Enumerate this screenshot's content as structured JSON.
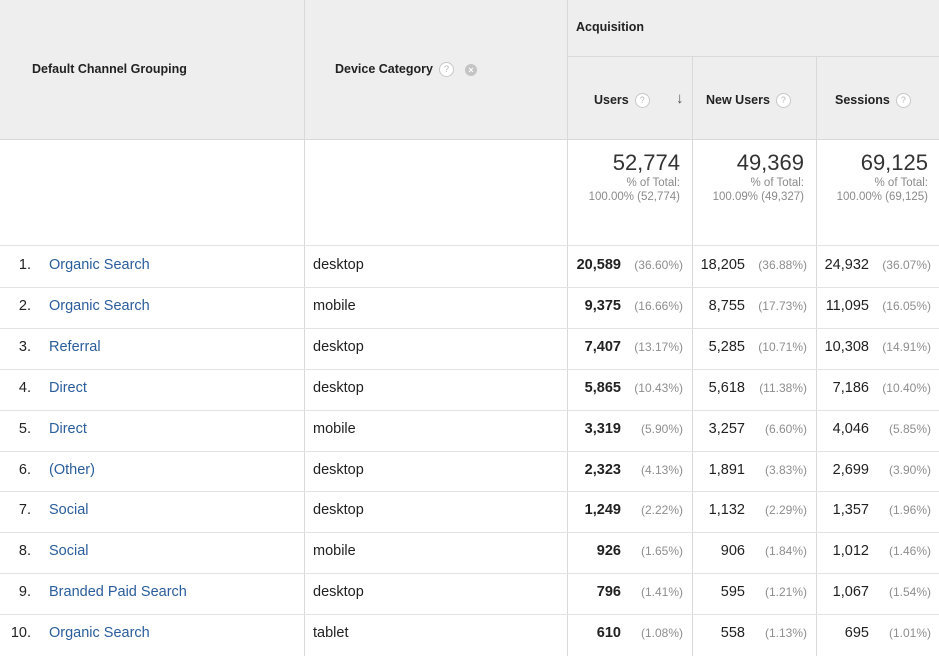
{
  "headers": {
    "dimension1": "Default Channel Grouping",
    "dimension2": "Device Category",
    "group": "Acquisition",
    "metrics": [
      "Users",
      "New Users",
      "Sessions"
    ],
    "help_glyph": "?",
    "remove_glyph": "×",
    "sort_glyph": "↓"
  },
  "totals": [
    {
      "value": "52,774",
      "label": "% of Total:",
      "detail": "100.00% (52,774)"
    },
    {
      "value": "49,369",
      "label": "% of Total:",
      "detail": "100.09% (49,327)"
    },
    {
      "value": "69,125",
      "label": "% of Total:",
      "detail": "100.00% (69,125)"
    }
  ],
  "rows": [
    {
      "n": "1.",
      "channel": "Organic Search",
      "device": "desktop",
      "users": "20,589",
      "users_pct": "(36.60%)",
      "new_users": "18,205",
      "new_users_pct": "(36.88%)",
      "sessions": "24,932",
      "sessions_pct": "(36.07%)"
    },
    {
      "n": "2.",
      "channel": "Organic Search",
      "device": "mobile",
      "users": "9,375",
      "users_pct": "(16.66%)",
      "new_users": "8,755",
      "new_users_pct": "(17.73%)",
      "sessions": "11,095",
      "sessions_pct": "(16.05%)"
    },
    {
      "n": "3.",
      "channel": "Referral",
      "device": "desktop",
      "users": "7,407",
      "users_pct": "(13.17%)",
      "new_users": "5,285",
      "new_users_pct": "(10.71%)",
      "sessions": "10,308",
      "sessions_pct": "(14.91%)"
    },
    {
      "n": "4.",
      "channel": "Direct",
      "device": "desktop",
      "users": "5,865",
      "users_pct": "(10.43%)",
      "new_users": "5,618",
      "new_users_pct": "(11.38%)",
      "sessions": "7,186",
      "sessions_pct": "(10.40%)"
    },
    {
      "n": "5.",
      "channel": "Direct",
      "device": "mobile",
      "users": "3,319",
      "users_pct": "(5.90%)",
      "new_users": "3,257",
      "new_users_pct": "(6.60%)",
      "sessions": "4,046",
      "sessions_pct": "(5.85%)"
    },
    {
      "n": "6.",
      "channel": "(Other)",
      "device": "desktop",
      "users": "2,323",
      "users_pct": "(4.13%)",
      "new_users": "1,891",
      "new_users_pct": "(3.83%)",
      "sessions": "2,699",
      "sessions_pct": "(3.90%)"
    },
    {
      "n": "7.",
      "channel": "Social",
      "device": "desktop",
      "users": "1,249",
      "users_pct": "(2.22%)",
      "new_users": "1,132",
      "new_users_pct": "(2.29%)",
      "sessions": "1,357",
      "sessions_pct": "(1.96%)"
    },
    {
      "n": "8.",
      "channel": "Social",
      "device": "mobile",
      "users": "926",
      "users_pct": "(1.65%)",
      "new_users": "906",
      "new_users_pct": "(1.84%)",
      "sessions": "1,012",
      "sessions_pct": "(1.46%)"
    },
    {
      "n": "9.",
      "channel": "Branded Paid Search",
      "device": "desktop",
      "users": "796",
      "users_pct": "(1.41%)",
      "new_users": "595",
      "new_users_pct": "(1.21%)",
      "sessions": "1,067",
      "sessions_pct": "(1.54%)"
    },
    {
      "n": "10.",
      "channel": "Organic Search",
      "device": "tablet",
      "users": "610",
      "users_pct": "(1.08%)",
      "new_users": "558",
      "new_users_pct": "(1.13%)",
      "sessions": "695",
      "sessions_pct": "(1.01%)"
    }
  ]
}
